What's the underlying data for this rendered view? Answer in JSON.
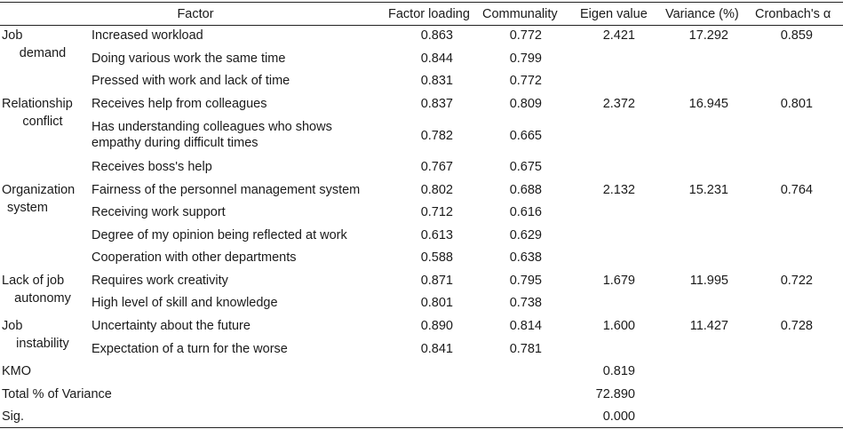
{
  "headers": {
    "factor": "Factor",
    "loading": "Factor loading",
    "communality": "Communality",
    "eigen": "Eigen value",
    "variance": "Variance (%)",
    "alpha": "Cronbach's α"
  },
  "groups": [
    {
      "name_line1": "Job",
      "name_line2": "demand",
      "eigen": "2.421",
      "variance": "17.292",
      "alpha": "0.859",
      "items": [
        {
          "label": "Increased workload",
          "loading": "0.863",
          "communality": "0.772"
        },
        {
          "label": "Doing various work the same time",
          "loading": "0.844",
          "communality": "0.799"
        },
        {
          "label": "Pressed with work and lack of time",
          "loading": "0.831",
          "communality": "0.772"
        }
      ]
    },
    {
      "name_line1": "Relationship",
      "name_line2": "conflict",
      "eigen": "2.372",
      "variance": "16.945",
      "alpha": "0.801",
      "items": [
        {
          "label": "Receives help from colleagues",
          "loading": "0.837",
          "communality": "0.809"
        },
        {
          "label": "Has understanding colleagues who shows empathy during difficult times",
          "loading": "0.782",
          "communality": "0.665"
        },
        {
          "label": "Receives boss's help",
          "loading": "0.767",
          "communality": "0.675"
        }
      ]
    },
    {
      "name_line1": "Organization",
      "name_line2": "system",
      "eigen": "2.132",
      "variance": "15.231",
      "alpha": "0.764",
      "items": [
        {
          "label": "Fairness of the personnel management system",
          "loading": "0.802",
          "communality": "0.688"
        },
        {
          "label": "Receiving work support",
          "loading": "0.712",
          "communality": "0.616"
        },
        {
          "label": "Degree of my opinion being reflected at work",
          "loading": "0.613",
          "communality": "0.629"
        },
        {
          "label": "Cooperation with other departments",
          "loading": "0.588",
          "communality": "0.638"
        }
      ]
    },
    {
      "name_line1": "Lack of job",
      "name_line2": "autonomy",
      "eigen": "1.679",
      "variance": "11.995",
      "alpha": "0.722",
      "items": [
        {
          "label": "Requires work creativity",
          "loading": "0.871",
          "communality": "0.795"
        },
        {
          "label": "High level of skill and knowledge",
          "loading": "0.801",
          "communality": "0.738"
        }
      ]
    },
    {
      "name_line1": "Job",
      "name_line2": "instability",
      "eigen": "1.600",
      "variance": "11.427",
      "alpha": "0.728",
      "items": [
        {
          "label": "Uncertainty about the future",
          "loading": "0.890",
          "communality": "0.814"
        },
        {
          "label": "Expectation of a turn for the worse",
          "loading": "0.841",
          "communality": "0.781"
        }
      ]
    }
  ],
  "summary": [
    {
      "label": "KMO",
      "value": "0.819"
    },
    {
      "label": "Total % of Variance",
      "value": "72.890"
    },
    {
      "label": "Sig.",
      "value": "0.000"
    }
  ]
}
